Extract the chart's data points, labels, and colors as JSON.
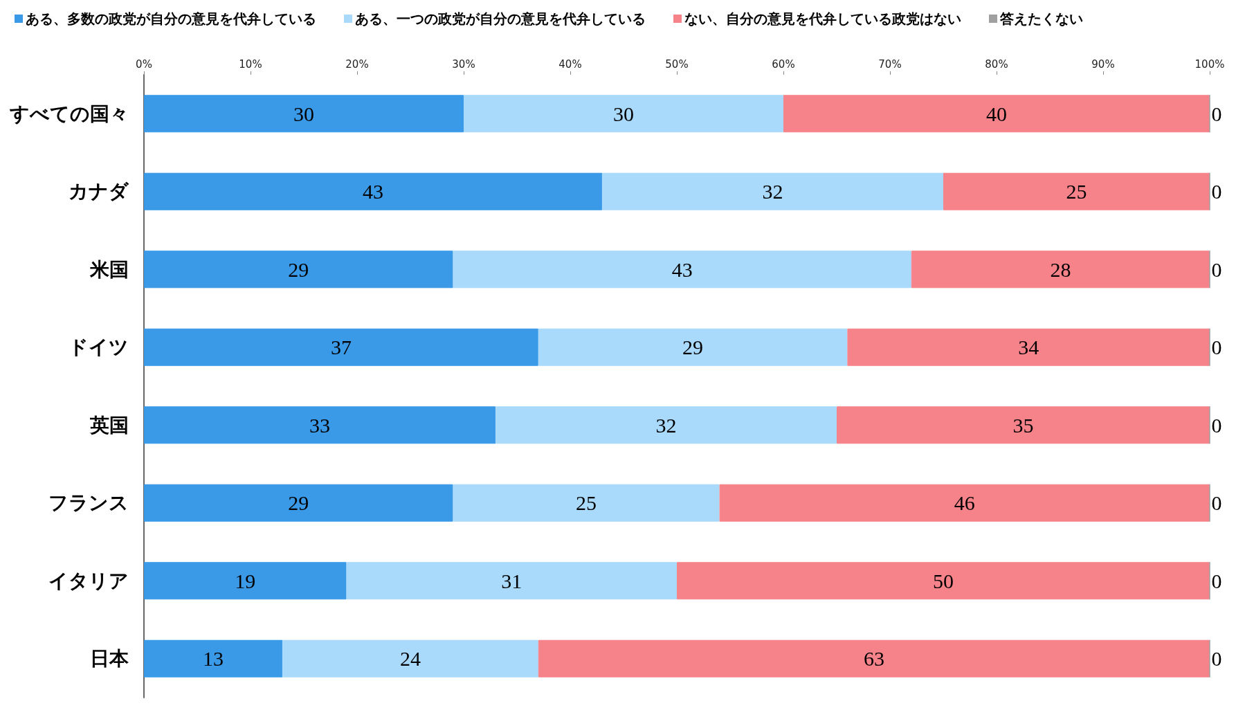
{
  "chart_data": {
    "type": "bar",
    "orientation": "horizontal",
    "stacked": true,
    "data_labels": true,
    "legend": "top",
    "grid": false,
    "categories": [
      "すべての国々",
      "カナダ",
      "米国",
      "ドイツ",
      "英国",
      "フランス",
      "イタリア",
      "日本"
    ],
    "series": [
      {
        "name": "ある、多数の政党が自分の意見を代弁している",
        "color": "#3a9ae8",
        "values": [
          30,
          43,
          29,
          37,
          33,
          29,
          19,
          13
        ]
      },
      {
        "name": "ある、一つの政党が自分の意見を代弁している",
        "color": "#a9d9fb",
        "values": [
          30,
          32,
          43,
          29,
          32,
          25,
          31,
          24
        ]
      },
      {
        "name": "ない、自分の意見を代弁している政党はない",
        "color": "#f7838a",
        "values": [
          40,
          25,
          28,
          34,
          35,
          46,
          50,
          63
        ]
      },
      {
        "name": "答えたくない",
        "color": "#a0a0a0",
        "values": [
          0,
          0,
          0,
          0,
          0,
          0,
          0,
          0
        ]
      }
    ],
    "xlim": [
      0,
      100
    ],
    "xticks": [
      {
        "value": 0,
        "label": "0%"
      },
      {
        "value": 10,
        "label": "10%"
      },
      {
        "value": 20,
        "label": "20%"
      },
      {
        "value": 30,
        "label": "30%"
      },
      {
        "value": 40,
        "label": "40%"
      },
      {
        "value": 50,
        "label": "50%"
      },
      {
        "value": 60,
        "label": "60%"
      },
      {
        "value": 70,
        "label": "70%"
      },
      {
        "value": 80,
        "label": "80%"
      },
      {
        "value": 90,
        "label": "90%"
      },
      {
        "value": 100,
        "label": "100%"
      }
    ]
  }
}
